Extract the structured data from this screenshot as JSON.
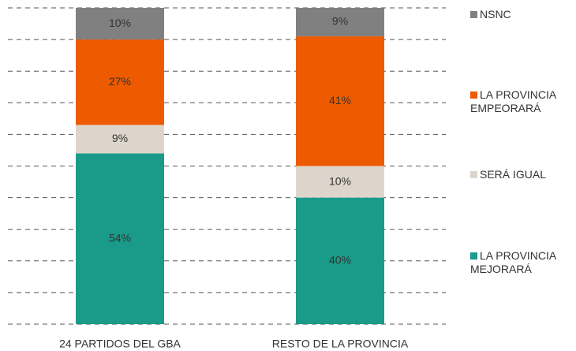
{
  "chart_data": {
    "type": "stacked_bar",
    "categories": [
      "24 PARTIDOS DEL GBA",
      "RESTO DE LA PROVINCIA"
    ],
    "series": [
      {
        "name": "LA PROVINCIA MEJORARÁ",
        "color": "#1a9a88",
        "values": [
          54,
          40
        ],
        "value_labels": [
          "54%",
          "40%"
        ]
      },
      {
        "name": "SERÁ IGUAL",
        "color": "#ddd5cc",
        "values": [
          9,
          10
        ],
        "value_labels": [
          "9%",
          "10%"
        ]
      },
      {
        "name": "LA PROVINCIA EMPEORARÁ",
        "color": "#ee5a00",
        "values": [
          27,
          41
        ],
        "value_labels": [
          "27%",
          "41%"
        ]
      },
      {
        "name": "NSNC",
        "color": "#808080",
        "values": [
          10,
          9
        ],
        "value_labels": [
          "10%",
          "9%"
        ]
      }
    ],
    "ylim": [
      0,
      100
    ],
    "yticks": [
      0,
      10,
      20,
      30,
      40,
      50,
      60,
      70,
      80,
      90,
      100
    ],
    "grid": true
  }
}
